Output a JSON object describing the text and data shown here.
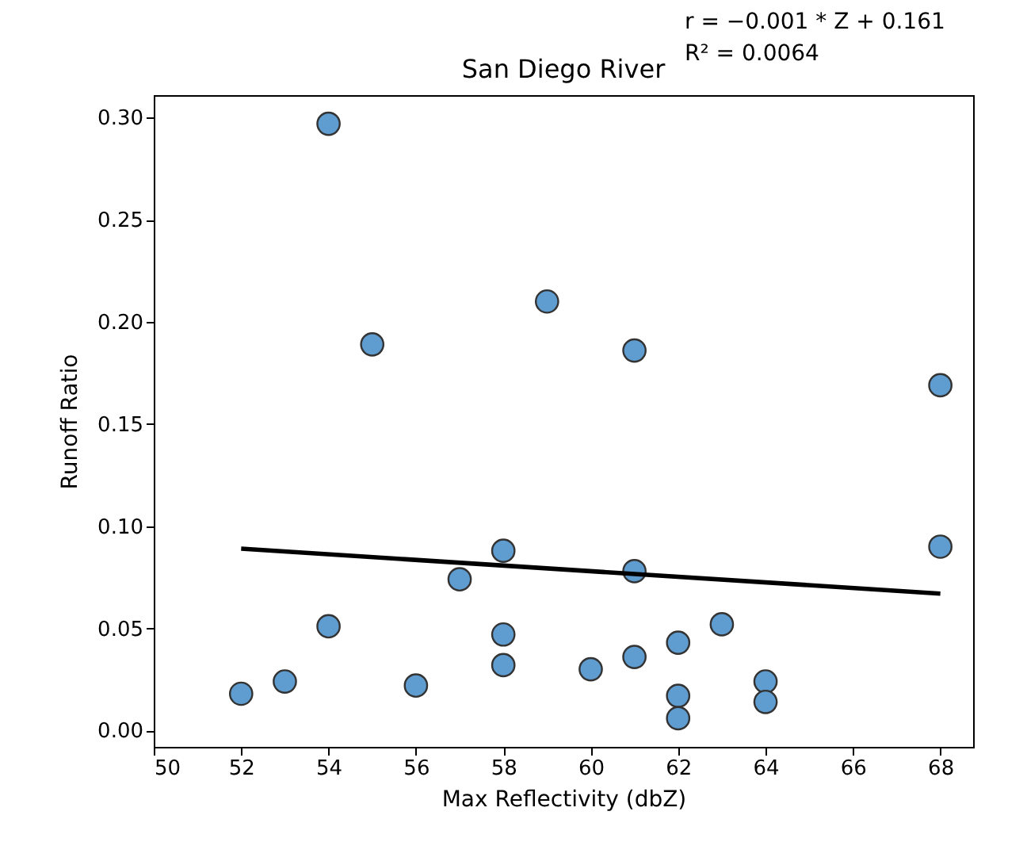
{
  "chart_data": {
    "type": "scatter",
    "title": "San Diego River",
    "xlabel": "Max Reflectivity (dbZ)",
    "ylabel": "Runoff Ratio",
    "annotations": [
      "r = −0.001 * Z + 0.161",
      "R² = 0.0064"
    ],
    "grid": false,
    "xlim": [
      50,
      68.75
    ],
    "xticks": [
      50,
      52,
      54,
      56,
      58,
      60,
      62,
      64,
      66,
      68
    ],
    "ylim": [
      -0.008,
      0.311
    ],
    "yticks": [
      {
        "value": 0,
        "label": "0.00"
      },
      {
        "value": 0.05,
        "label": "0.05"
      },
      {
        "value": 0.1,
        "label": "0.10"
      },
      {
        "value": 0.15,
        "label": "0.15"
      },
      {
        "value": 0.2,
        "label": "0.20"
      },
      {
        "value": 0.25,
        "label": "0.25"
      },
      {
        "value": 0.3,
        "label": "0.30"
      }
    ],
    "series": [
      {
        "marker": "circle",
        "color": "#5f9ccf",
        "x": [
          52,
          53,
          54,
          54,
          55,
          56,
          57,
          58,
          58,
          58,
          59,
          60,
          61,
          61,
          61,
          62,
          62,
          62,
          63,
          64,
          64,
          68,
          68
        ],
        "values": [
          0.018,
          0.024,
          0.297,
          0.051,
          0.189,
          0.022,
          0.074,
          0.088,
          0.047,
          0.032,
          0.21,
          0.03,
          0.186,
          0.078,
          0.036,
          0.043,
          0.017,
          0.006,
          0.052,
          0.024,
          0.014,
          0.169,
          0.09
        ]
      },
      {
        "type": "line",
        "color": "#000000",
        "x": [
          52,
          68
        ],
        "values": [
          0.089,
          0.067
        ]
      }
    ]
  }
}
